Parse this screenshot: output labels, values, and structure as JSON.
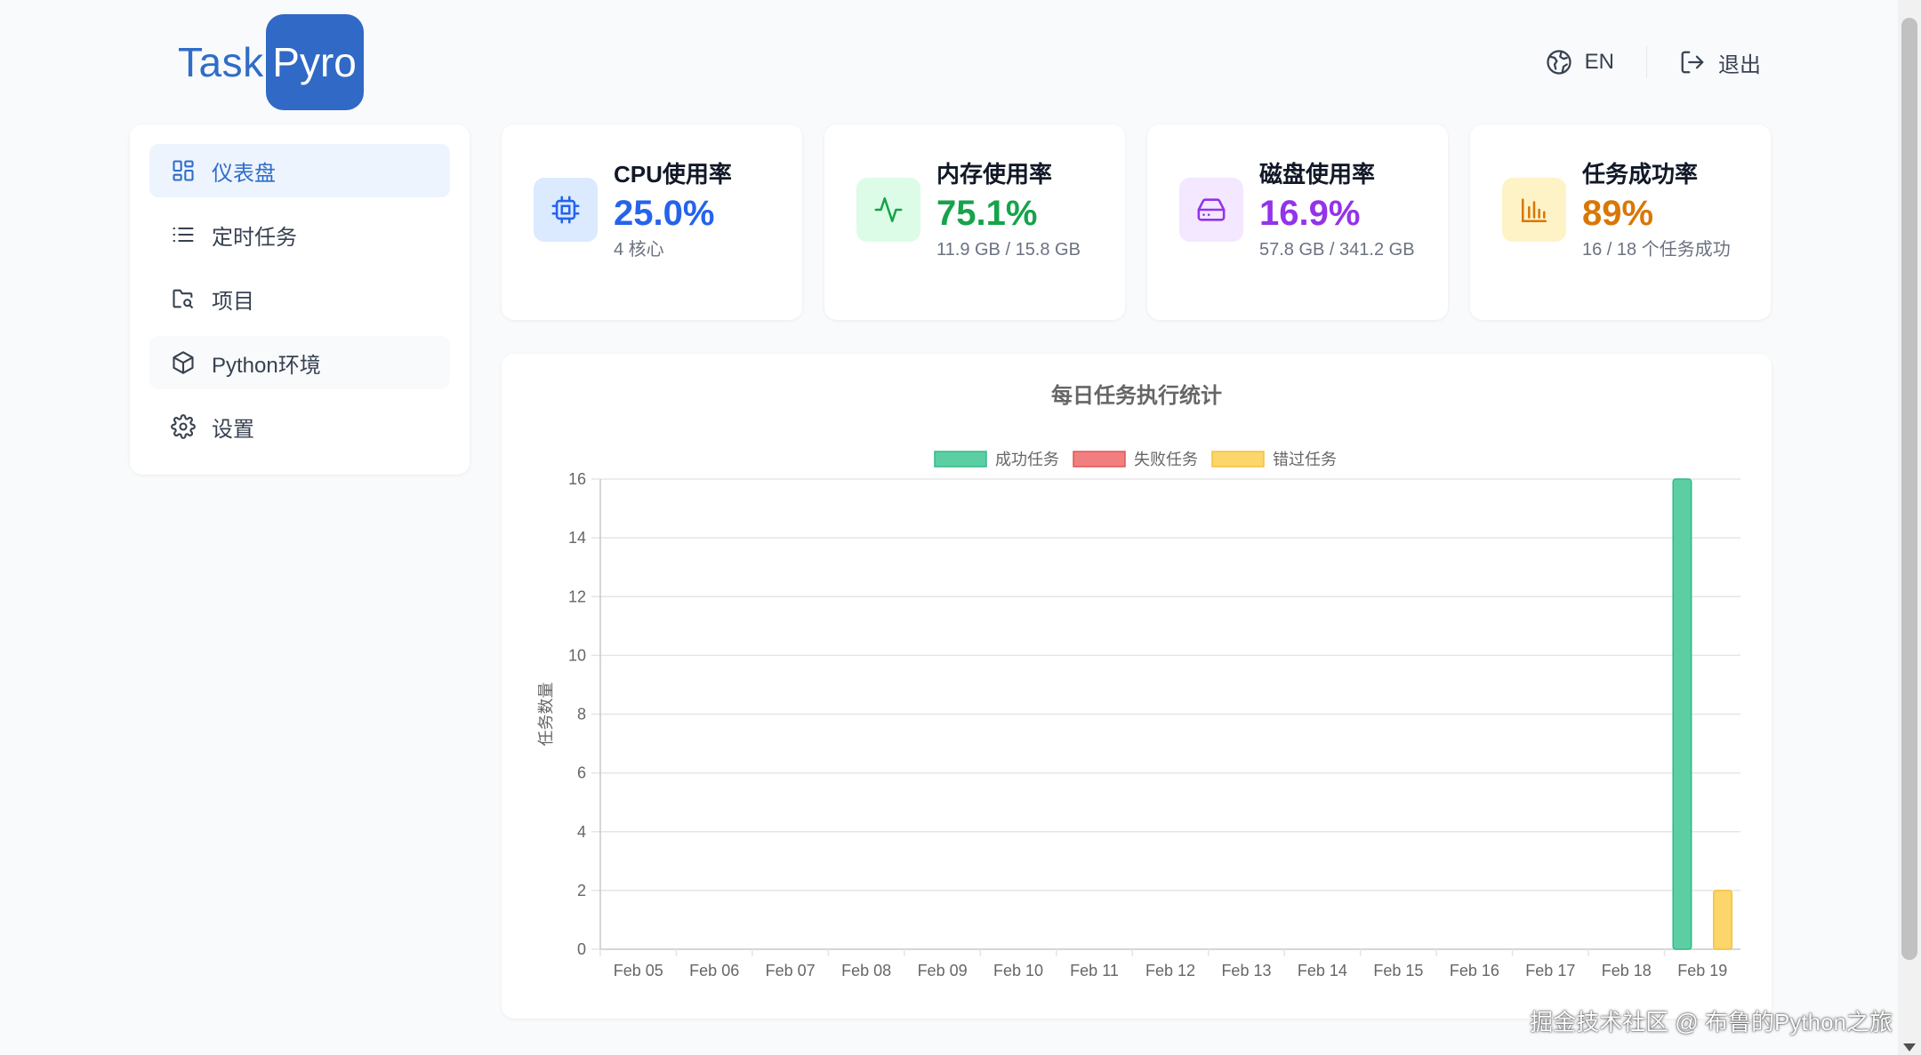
{
  "header": {
    "logo_task": "Task",
    "logo_pyro": "Pyro",
    "lang_label": "EN",
    "logout_label": "退出"
  },
  "sidebar": {
    "items": [
      {
        "label": "仪表盘",
        "icon": "dashboard-icon",
        "active": true
      },
      {
        "label": "定时任务",
        "icon": "list-icon"
      },
      {
        "label": "项目",
        "icon": "folder-icon"
      },
      {
        "label": "Python环境",
        "icon": "cube-icon"
      },
      {
        "label": "设置",
        "icon": "gear-icon"
      }
    ]
  },
  "stats": {
    "cpu": {
      "title": "CPU使用率",
      "value": "25.0%",
      "sub": "4 核心",
      "color": "#2563eb",
      "bg": "#dbeafe",
      "icon": "cpu-icon"
    },
    "memory": {
      "title": "内存使用率",
      "value": "75.1%",
      "sub": "11.9 GB / 15.8 GB",
      "color": "#16a34a",
      "bg": "#dcfce7",
      "icon": "activity-icon"
    },
    "disk": {
      "title": "磁盘使用率",
      "value": "16.9%",
      "sub": "57.8 GB / 341.2 GB",
      "color": "#9333ea",
      "bg": "#f3e8ff",
      "icon": "hard-drive-icon"
    },
    "success": {
      "title": "任务成功率",
      "value": "89%",
      "sub": "16 / 18 个任务成功",
      "color": "#d97706",
      "bg": "#fef3c7",
      "icon": "bar-chart-icon"
    }
  },
  "chart_data": {
    "type": "bar",
    "title": "每日任务执行统计",
    "ylabel": "任务数量",
    "xlabel": "",
    "ylim": [
      0,
      16
    ],
    "yticks": [
      0,
      2,
      4,
      6,
      8,
      10,
      12,
      14,
      16
    ],
    "grid": true,
    "legend_position": "top",
    "categories": [
      "Feb 05",
      "Feb 06",
      "Feb 07",
      "Feb 08",
      "Feb 09",
      "Feb 10",
      "Feb 11",
      "Feb 12",
      "Feb 13",
      "Feb 14",
      "Feb 15",
      "Feb 16",
      "Feb 17",
      "Feb 18",
      "Feb 19"
    ],
    "series": [
      {
        "name": "成功任务",
        "color": "#5bcfa3",
        "border": "#34b889",
        "values": [
          0,
          0,
          0,
          0,
          0,
          0,
          0,
          0,
          0,
          0,
          0,
          0,
          0,
          0,
          16
        ]
      },
      {
        "name": "失败任务",
        "color": "#f17f7f",
        "border": "#e05555",
        "values": [
          0,
          0,
          0,
          0,
          0,
          0,
          0,
          0,
          0,
          0,
          0,
          0,
          0,
          0,
          0
        ]
      },
      {
        "name": "错过任务",
        "color": "#fcd66a",
        "border": "#f2c23c",
        "values": [
          0,
          0,
          0,
          0,
          0,
          0,
          0,
          0,
          0,
          0,
          0,
          0,
          0,
          0,
          2
        ]
      }
    ]
  },
  "watermark": "掘金技术社区 @ 布鲁的Python之旅"
}
